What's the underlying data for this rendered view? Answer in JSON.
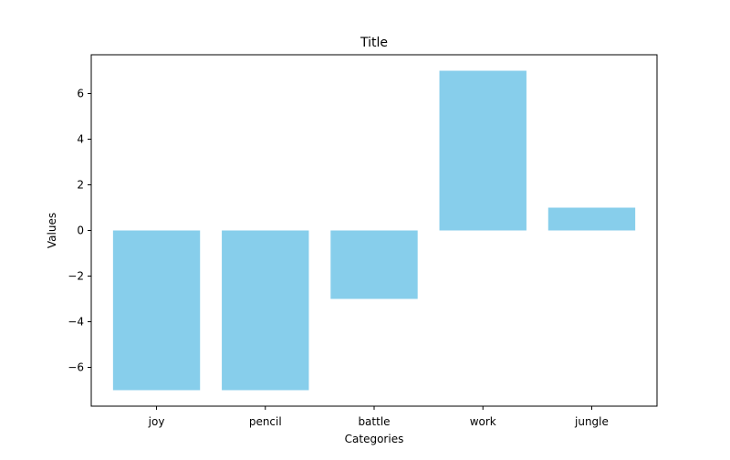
{
  "chart_data": {
    "type": "bar",
    "title": "Title",
    "xlabel": "Categories",
    "ylabel": "Values",
    "categories": [
      "joy",
      "pencil",
      "battle",
      "work",
      "jungle"
    ],
    "values": [
      -7,
      -7,
      -3,
      7,
      1
    ],
    "ylim": [
      -7.7,
      7.7
    ],
    "yticks": [
      -6,
      -4,
      -2,
      0,
      2,
      4,
      6
    ],
    "ytick_labels": [
      "−6",
      "−4",
      "−2",
      "0",
      "2",
      "4",
      "6"
    ],
    "bar_color": "#87ceeb",
    "grid": false,
    "legend": "none"
  }
}
